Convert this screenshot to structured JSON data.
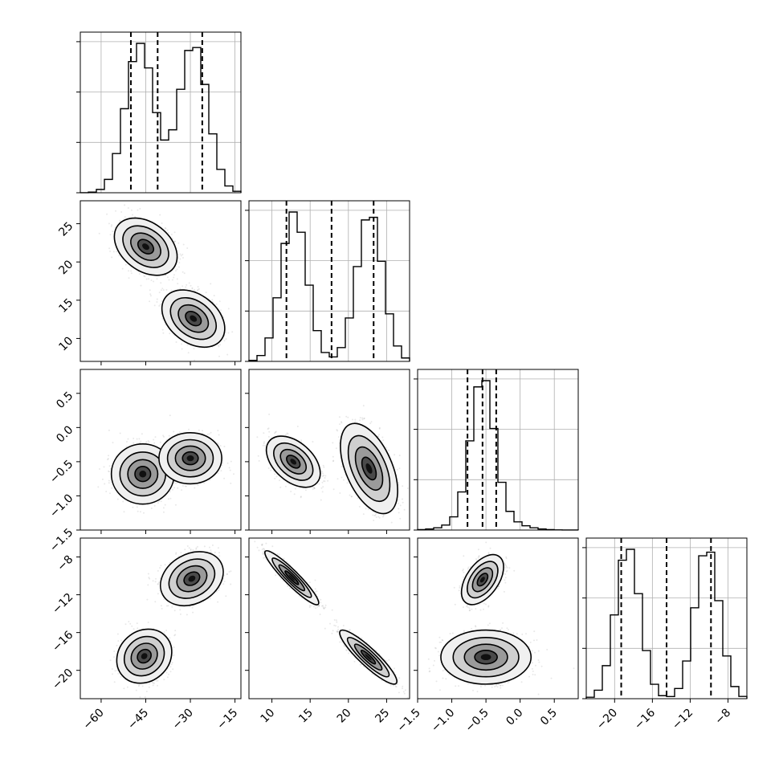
{
  "chart_data": {
    "type": "corner",
    "grid": true,
    "params": [
      {
        "range": [
          -67,
          -13
        ],
        "ticks": [
          -60,
          -45,
          -30,
          -15
        ],
        "tick_labels": [
          "−60",
          "−45",
          "−30",
          "−15"
        ],
        "modes": [
          {
            "mean": -47,
            "sd": 4.8,
            "w": 0.5
          },
          {
            "mean": -29,
            "sd": 4.8,
            "w": 0.5
          }
        ],
        "quantiles": [
          -50,
          -41,
          -26
        ]
      },
      {
        "range": [
          7,
          28
        ],
        "ticks": [
          10,
          15,
          20,
          25
        ],
        "tick_labels": [
          "10",
          "15",
          "20",
          "25"
        ],
        "modes": [
          {
            "mean": 12.9,
            "sd": 1.7,
            "w": 0.5
          },
          {
            "mean": 22.8,
            "sd": 1.7,
            "w": 0.5
          }
        ],
        "quantiles": [
          11.9,
          17.8,
          23.3
        ]
      },
      {
        "range": [
          -1.5,
          0.85
        ],
        "ticks": [
          -1.5,
          -1.0,
          -0.5,
          0.0,
          0.5
        ],
        "tick_labels": [
          "−1.5",
          "−1.0",
          "−0.5",
          "0.0",
          "0.5"
        ],
        "modes": [
          {
            "mean": -0.55,
            "sd": 0.17,
            "w": 0.8
          },
          {
            "mean": -0.5,
            "sd": 0.35,
            "w": 0.2
          }
        ],
        "quantiles": [
          -0.77,
          -0.55,
          -0.35
        ]
      },
      {
        "range": [
          -23,
          -6
        ],
        "ticks": [
          -20,
          -16,
          -12,
          -8
        ],
        "tick_labels": [
          "−20",
          "−16",
          "−12",
          "−8"
        ],
        "modes": [
          {
            "mean": -18.6,
            "sd": 1.3,
            "w": 0.5
          },
          {
            "mean": -10.2,
            "sd": 1.3,
            "w": 0.5
          }
        ],
        "quantiles": [
          -19.3,
          -14.5,
          -9.8
        ]
      }
    ],
    "pairs": [
      {
        "x": 0,
        "y": 1,
        "clusters": [
          {
            "cx": -45,
            "cy": 22,
            "sx": 4.8,
            "sy": 1.7,
            "r": -0.35
          },
          {
            "cx": -29,
            "cy": 12.6,
            "sx": 4.8,
            "sy": 1.7,
            "r": -0.35
          }
        ]
      },
      {
        "x": 0,
        "y": 2,
        "clusters": [
          {
            "cx": -46,
            "cy": -0.68,
            "sx": 4.8,
            "sy": 0.2,
            "r": 0.0
          },
          {
            "cx": -30,
            "cy": -0.45,
            "sx": 4.8,
            "sy": 0.17,
            "r": 0.0
          }
        ]
      },
      {
        "x": 1,
        "y": 2,
        "clusters": [
          {
            "cx": 12.8,
            "cy": -0.5,
            "sx": 1.6,
            "sy": 0.17,
            "r": -0.45
          },
          {
            "cx": 22.7,
            "cy": -0.6,
            "sx": 1.7,
            "sy": 0.3,
            "r": -0.5
          }
        ]
      },
      {
        "x": 0,
        "y": 3,
        "clusters": [
          {
            "cx": -45.5,
            "cy": -18.5,
            "sx": 4.2,
            "sy": 1.3,
            "r": 0.15
          },
          {
            "cx": -29.5,
            "cy": -10.3,
            "sx": 4.8,
            "sy": 1.3,
            "r": 0.25
          }
        ]
      },
      {
        "x": 1,
        "y": 3,
        "clusters": [
          {
            "cx": 12.6,
            "cy": -10.2,
            "sx": 1.6,
            "sy": 1.3,
            "r": -0.93
          },
          {
            "cx": 22.6,
            "cy": -18.6,
            "sx": 1.7,
            "sy": 1.3,
            "r": -0.9
          }
        ]
      },
      {
        "x": 2,
        "y": 3,
        "clusters": [
          {
            "cx": -0.55,
            "cy": -10.4,
            "sx": 0.14,
            "sy": 1.2,
            "r": 0.5
          },
          {
            "cx": -0.5,
            "cy": -18.6,
            "sx": 0.3,
            "sy": 1.3,
            "r": 0.0
          }
        ]
      }
    ]
  }
}
